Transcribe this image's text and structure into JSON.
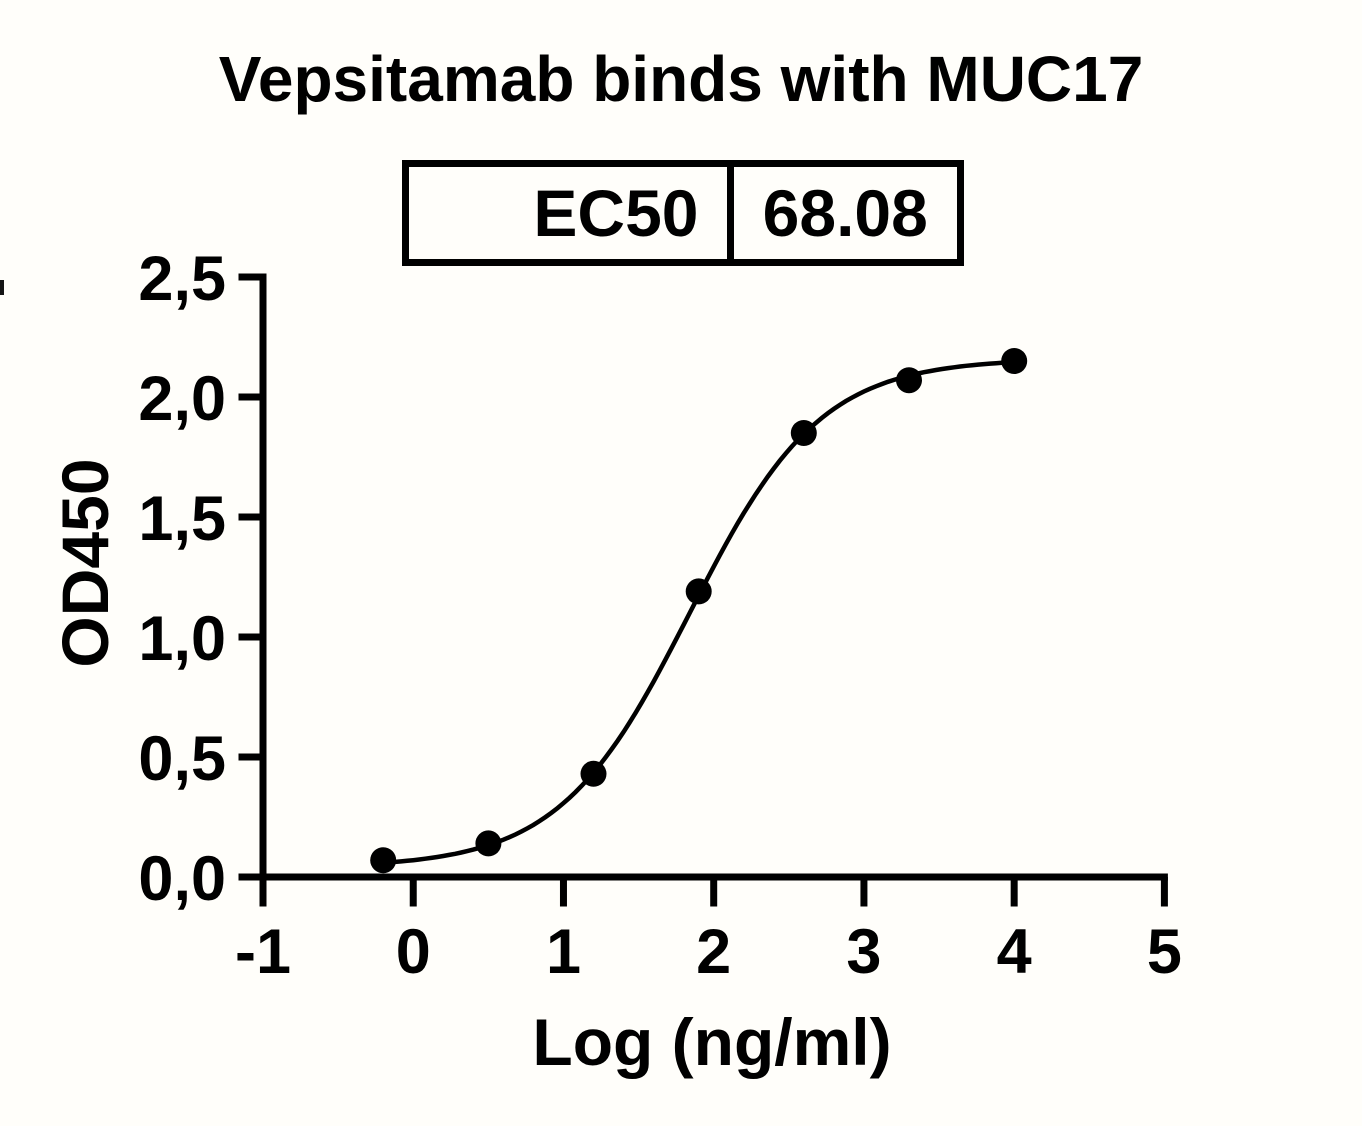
{
  "title": "Vepsitamab binds with MUC17",
  "ec50_table": {
    "label": "EC50",
    "value": "68.08"
  },
  "chart_data": {
    "type": "scatter",
    "title": "Vepsitamab binds with MUC17",
    "xlabel": "Log (ng/ml)",
    "ylabel": "OD450",
    "x": [
      -0.2,
      0.5,
      1.2,
      1.9,
      2.6,
      3.3,
      4.0
    ],
    "y": [
      0.07,
      0.14,
      0.43,
      1.19,
      1.85,
      2.07,
      2.15
    ],
    "x_ticks": [
      -1,
      0,
      1,
      2,
      3,
      4,
      5
    ],
    "x_tick_labels": [
      "-1",
      "0",
      "1",
      "2",
      "3",
      "4",
      "5"
    ],
    "y_ticks": [
      0,
      0.5,
      1.0,
      1.5,
      2.0,
      2.5
    ],
    "y_tick_labels": [
      "0,0",
      "0,5",
      "1,0",
      "1,5",
      "2,0",
      "2,5"
    ],
    "xlim": [
      -1,
      5
    ],
    "ylim": [
      0,
      2.5
    ],
    "grid": false,
    "legend": null,
    "marker_color": "#000000",
    "line_color": "#000000",
    "ec50": 68.08,
    "curve_fit": {
      "model": "4PL",
      "bottom": 0.04,
      "top": 2.16,
      "log_ec50": 1.84,
      "hill": 1.0
    }
  }
}
